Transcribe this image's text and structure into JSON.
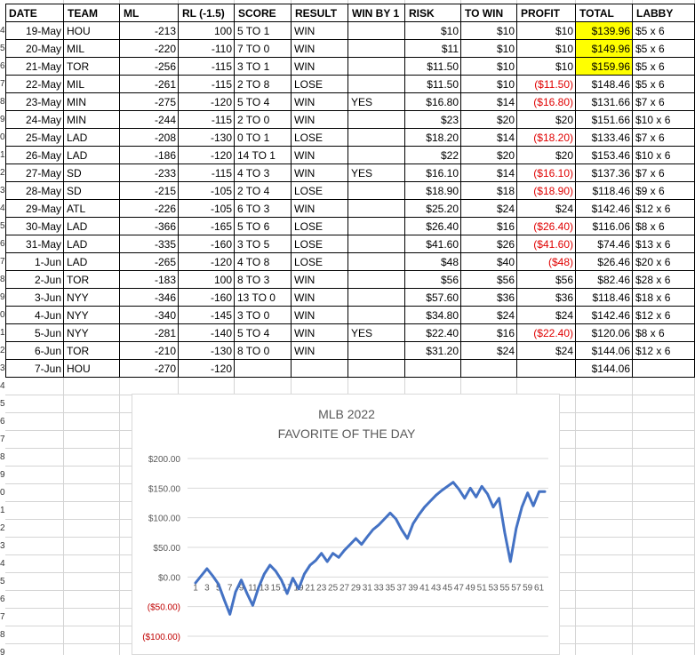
{
  "headers": {
    "date": "DATE",
    "team": "TEAM",
    "ml": "ML",
    "rl": "RL (-1.5)",
    "score": "SCORE",
    "result": "RESULT",
    "winby1": "WIN BY 1",
    "risk": "RISK",
    "towin": "TO WIN",
    "profit": "PROFIT",
    "total": "TOTAL",
    "labby": "LABBY"
  },
  "row_numbers": [
    "4",
    "5",
    "6",
    "7",
    "8",
    "9",
    "0",
    "1",
    "2",
    "3",
    "4",
    "5",
    "6",
    "7",
    "8",
    "9",
    "0",
    "1",
    "2",
    "3",
    "4",
    "5",
    "6",
    "7",
    "8",
    "9",
    "0",
    "1",
    "2",
    "3",
    "4",
    "5",
    "6",
    "7",
    "8",
    "9"
  ],
  "rows": [
    {
      "date": "19-May",
      "team": "HOU",
      "ml": "-213",
      "rl": "100",
      "score": "5 TO 1",
      "result": "WIN",
      "winby1": "",
      "risk": "$10",
      "towin": "$10",
      "profit": "$10",
      "profit_neg": false,
      "total": "$139.96",
      "total_hl": true,
      "labby": "$5 x 6"
    },
    {
      "date": "20-May",
      "team": "MIL",
      "ml": "-220",
      "rl": "-110",
      "score": "7 TO 0",
      "result": "WIN",
      "winby1": "",
      "risk": "$11",
      "towin": "$10",
      "profit": "$10",
      "profit_neg": false,
      "total": "$149.96",
      "total_hl": true,
      "labby": "$5 x 6"
    },
    {
      "date": "21-May",
      "team": "TOR",
      "ml": "-256",
      "rl": "-115",
      "score": "3 TO 1",
      "result": "WIN",
      "winby1": "",
      "risk": "$11.50",
      "towin": "$10",
      "profit": "$10",
      "profit_neg": false,
      "total": "$159.96",
      "total_hl": true,
      "labby": "$5 x 6"
    },
    {
      "date": "22-May",
      "team": "MIL",
      "ml": "-261",
      "rl": "-115",
      "score": "2 TO 8",
      "result": "LOSE",
      "winby1": "",
      "risk": "$11.50",
      "towin": "$10",
      "profit": "($11.50)",
      "profit_neg": true,
      "total": "$148.46",
      "total_hl": false,
      "labby": "$5 x 6"
    },
    {
      "date": "23-May",
      "team": "MIN",
      "ml": "-275",
      "rl": "-120",
      "score": "5 TO 4",
      "result": "WIN",
      "winby1": "YES",
      "risk": "$16.80",
      "towin": "$14",
      "profit": "($16.80)",
      "profit_neg": true,
      "total": "$131.66",
      "total_hl": false,
      "labby": "$7 x 6"
    },
    {
      "date": "24-May",
      "team": "MIN",
      "ml": "-244",
      "rl": "-115",
      "score": "2 TO 0",
      "result": "WIN",
      "winby1": "",
      "risk": "$23",
      "towin": "$20",
      "profit": "$20",
      "profit_neg": false,
      "total": "$151.66",
      "total_hl": false,
      "labby": "$10 x 6"
    },
    {
      "date": "25-May",
      "team": "LAD",
      "ml": "-208",
      "rl": "-130",
      "score": "0 TO 1",
      "result": "LOSE",
      "winby1": "",
      "risk": "$18.20",
      "towin": "$14",
      "profit": "($18.20)",
      "profit_neg": true,
      "total": "$133.46",
      "total_hl": false,
      "labby": "$7 x 6"
    },
    {
      "date": "26-May",
      "team": "LAD",
      "ml": "-186",
      "rl": "-120",
      "score": "14 TO 1",
      "result": "WIN",
      "winby1": "",
      "risk": "$22",
      "towin": "$20",
      "profit": "$20",
      "profit_neg": false,
      "total": "$153.46",
      "total_hl": false,
      "labby": "$10 x 6"
    },
    {
      "date": "27-May",
      "team": "SD",
      "ml": "-233",
      "rl": "-115",
      "score": "4 TO 3",
      "result": "WIN",
      "winby1": "YES",
      "risk": "$16.10",
      "towin": "$14",
      "profit": "($16.10)",
      "profit_neg": true,
      "total": "$137.36",
      "total_hl": false,
      "labby": "$7 x 6"
    },
    {
      "date": "28-May",
      "team": "SD",
      "ml": "-215",
      "rl": "-105",
      "score": "2 TO 4",
      "result": "LOSE",
      "winby1": "",
      "risk": "$18.90",
      "towin": "$18",
      "profit": "($18.90)",
      "profit_neg": true,
      "total": "$118.46",
      "total_hl": false,
      "labby": "$9 x 6"
    },
    {
      "date": "29-May",
      "team": "ATL",
      "ml": "-226",
      "rl": "-105",
      "score": "6 TO 3",
      "result": "WIN",
      "winby1": "",
      "risk": "$25.20",
      "towin": "$24",
      "profit": "$24",
      "profit_neg": false,
      "total": "$142.46",
      "total_hl": false,
      "labby": "$12 x 6"
    },
    {
      "date": "30-May",
      "team": "LAD",
      "ml": "-366",
      "rl": "-165",
      "score": "5 TO 6",
      "result": "LOSE",
      "winby1": "",
      "risk": "$26.40",
      "towin": "$16",
      "profit": "($26.40)",
      "profit_neg": true,
      "total": "$116.06",
      "total_hl": false,
      "labby": "$8 x 6"
    },
    {
      "date": "31-May",
      "team": "LAD",
      "ml": "-335",
      "rl": "-160",
      "score": "3 TO 5",
      "result": "LOSE",
      "winby1": "",
      "risk": "$41.60",
      "towin": "$26",
      "profit": "($41.60)",
      "profit_neg": true,
      "total": "$74.46",
      "total_hl": false,
      "labby": "$13 x 6"
    },
    {
      "date": "1-Jun",
      "team": "LAD",
      "ml": "-265",
      "rl": "-120",
      "score": "4 TO 8",
      "result": "LOSE",
      "winby1": "",
      "risk": "$48",
      "towin": "$40",
      "profit": "($48)",
      "profit_neg": true,
      "total": "$26.46",
      "total_hl": false,
      "labby": "$20 x 6"
    },
    {
      "date": "2-Jun",
      "team": "TOR",
      "ml": "-183",
      "rl": "100",
      "score": "8 TO 3",
      "result": "WIN",
      "winby1": "",
      "risk": "$56",
      "towin": "$56",
      "profit": "$56",
      "profit_neg": false,
      "total": "$82.46",
      "total_hl": false,
      "labby": "$28 x 6"
    },
    {
      "date": "3-Jun",
      "team": "NYY",
      "ml": "-346",
      "rl": "-160",
      "score": "13 TO 0",
      "result": "WIN",
      "winby1": "",
      "risk": "$57.60",
      "towin": "$36",
      "profit": "$36",
      "profit_neg": false,
      "total": "$118.46",
      "total_hl": false,
      "labby": "$18 x 6"
    },
    {
      "date": "4-Jun",
      "team": "NYY",
      "ml": "-340",
      "rl": "-145",
      "score": "3 TO 0",
      "result": "WIN",
      "winby1": "",
      "risk": "$34.80",
      "towin": "$24",
      "profit": "$24",
      "profit_neg": false,
      "total": "$142.46",
      "total_hl": false,
      "labby": "$12 x 6"
    },
    {
      "date": "5-Jun",
      "team": "NYY",
      "ml": "-281",
      "rl": "-140",
      "score": "5 TO 4",
      "result": "WIN",
      "winby1": "YES",
      "risk": "$22.40",
      "towin": "$16",
      "profit": "($22.40)",
      "profit_neg": true,
      "total": "$120.06",
      "total_hl": false,
      "labby": "$8 x 6"
    },
    {
      "date": "6-Jun",
      "team": "TOR",
      "ml": "-210",
      "rl": "-130",
      "score": "8 TO 0",
      "result": "WIN",
      "winby1": "",
      "risk": "$31.20",
      "towin": "$24",
      "profit": "$24",
      "profit_neg": false,
      "total": "$144.06",
      "total_hl": false,
      "labby": "$12 x 6"
    },
    {
      "date": "7-Jun",
      "team": "HOU",
      "ml": "-270",
      "rl": "-120",
      "score": "",
      "result": "",
      "winby1": "",
      "risk": "",
      "towin": "",
      "profit": "",
      "profit_neg": false,
      "total": "$144.06",
      "total_hl": false,
      "labby": ""
    }
  ],
  "chart_data": {
    "type": "line",
    "title": "MLB 2022",
    "subtitle": "FAVORITE OF THE DAY",
    "xlabel": "",
    "ylabel": "",
    "ylim": [
      -100,
      200
    ],
    "y_ticks": [
      200,
      150,
      100,
      50,
      0,
      -50,
      -100
    ],
    "y_tick_labels": [
      "$200.00",
      "$150.00",
      "$100.00",
      "$50.00",
      "$0.00",
      "($50.00)",
      "($100.00)"
    ],
    "y_tick_negative": [
      false,
      false,
      false,
      false,
      false,
      true,
      true
    ],
    "x_tick_labels": [
      "1",
      "3",
      "5",
      "7",
      "9",
      "11",
      "13",
      "15",
      "17",
      "19",
      "21",
      "23",
      "25",
      "27",
      "29",
      "31",
      "33",
      "35",
      "37",
      "39",
      "41",
      "43",
      "45",
      "47",
      "49",
      "51",
      "53",
      "55",
      "57",
      "59",
      "61"
    ],
    "line_color": "#4472c4",
    "negative_label_color": "#c00000",
    "series": [
      {
        "name": "",
        "values": [
          -10,
          2,
          14,
          2,
          -12,
          -38,
          -63,
          -25,
          -5,
          -28,
          -48,
          -18,
          5,
          20,
          10,
          -5,
          -28,
          -2,
          -20,
          5,
          20,
          28,
          40,
          26,
          40,
          33,
          45,
          55,
          65,
          55,
          68,
          80,
          88,
          98,
          108,
          98,
          80,
          65,
          90,
          105,
          118,
          128,
          138,
          146,
          153,
          160,
          148,
          133,
          150,
          135,
          153,
          140,
          118,
          133,
          75,
          26,
          82,
          118,
          142,
          120,
          144,
          144
        ]
      }
    ]
  }
}
